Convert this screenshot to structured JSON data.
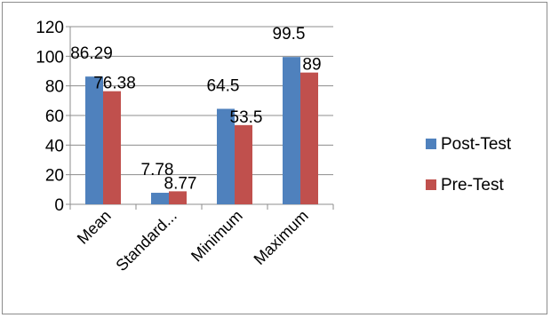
{
  "chart_data": {
    "type": "bar",
    "categories": [
      "Mean",
      "Standard...",
      "Minimum",
      "Maximum"
    ],
    "series": [
      {
        "name": "Post-Test",
        "values": [
          86.29,
          7.78,
          64.5,
          99.5
        ],
        "labels": [
          "86.29",
          "7.78",
          "64.5",
          "99.5"
        ],
        "color": "#4f81bd"
      },
      {
        "name": "Pre-Test",
        "values": [
          76.38,
          8.77,
          53.5,
          89
        ],
        "labels": [
          "76.38",
          "8.77",
          "53.5",
          "89"
        ],
        "color": "#c0504d"
      }
    ],
    "ylim": [
      0,
      120
    ],
    "yticks": [
      0,
      20,
      40,
      60,
      80,
      100,
      120
    ],
    "grid": true,
    "legend": "right"
  }
}
